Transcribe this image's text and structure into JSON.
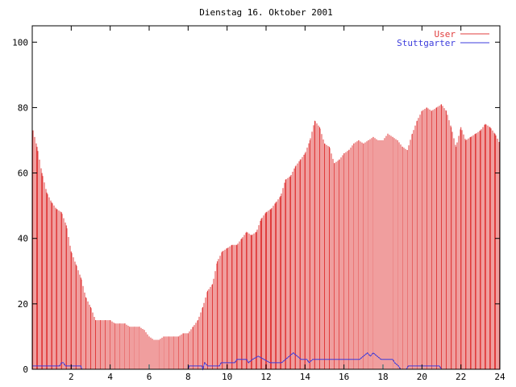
{
  "chart_data": {
    "type": "bar",
    "title": "Dienstag 16. Oktober 2001",
    "xlabel": "",
    "ylabel": "",
    "xlim": [
      0,
      24
    ],
    "ylim": [
      0,
      105
    ],
    "x_ticks": [
      2,
      4,
      6,
      8,
      10,
      12,
      14,
      16,
      18,
      20,
      22,
      24
    ],
    "y_ticks": [
      0,
      20,
      40,
      60,
      80,
      100
    ],
    "grid": false,
    "legend_position": "top-right",
    "colors": {
      "User": "#e03c3c",
      "Stuttgarter": "#3c3cdc"
    },
    "series": [
      {
        "name": "User",
        "style": "impulses",
        "points": [
          [
            0.0,
            74
          ],
          [
            0.25,
            68
          ],
          [
            0.5,
            60
          ],
          [
            0.75,
            54
          ],
          [
            1.0,
            51
          ],
          [
            1.25,
            49
          ],
          [
            1.5,
            48
          ],
          [
            1.75,
            44
          ],
          [
            2.0,
            36
          ],
          [
            2.25,
            32
          ],
          [
            2.5,
            28
          ],
          [
            2.75,
            22
          ],
          [
            3.0,
            19
          ],
          [
            3.25,
            15
          ],
          [
            3.5,
            15
          ],
          [
            3.75,
            15
          ],
          [
            4.0,
            15
          ],
          [
            4.25,
            14
          ],
          [
            4.5,
            14
          ],
          [
            4.75,
            14
          ],
          [
            5.0,
            13
          ],
          [
            5.25,
            13
          ],
          [
            5.5,
            13
          ],
          [
            5.75,
            12
          ],
          [
            6.0,
            10
          ],
          [
            6.25,
            9
          ],
          [
            6.5,
            9
          ],
          [
            6.75,
            10
          ],
          [
            7.0,
            10
          ],
          [
            7.25,
            10
          ],
          [
            7.5,
            10
          ],
          [
            7.75,
            11
          ],
          [
            8.0,
            11
          ],
          [
            8.25,
            13
          ],
          [
            8.5,
            15
          ],
          [
            8.75,
            19
          ],
          [
            9.0,
            24
          ],
          [
            9.25,
            26
          ],
          [
            9.5,
            33
          ],
          [
            9.75,
            36
          ],
          [
            10.0,
            37
          ],
          [
            10.25,
            38
          ],
          [
            10.5,
            38
          ],
          [
            10.75,
            40
          ],
          [
            11.0,
            42
          ],
          [
            11.25,
            41
          ],
          [
            11.5,
            42
          ],
          [
            11.75,
            46
          ],
          [
            12.0,
            48
          ],
          [
            12.25,
            49
          ],
          [
            12.5,
            51
          ],
          [
            12.75,
            53
          ],
          [
            13.0,
            58
          ],
          [
            13.25,
            59
          ],
          [
            13.5,
            62
          ],
          [
            13.75,
            64
          ],
          [
            14.0,
            66
          ],
          [
            14.25,
            70
          ],
          [
            14.5,
            76
          ],
          [
            14.75,
            74
          ],
          [
            15.0,
            69
          ],
          [
            15.25,
            68
          ],
          [
            15.5,
            63
          ],
          [
            15.75,
            64
          ],
          [
            16.0,
            66
          ],
          [
            16.25,
            67
          ],
          [
            16.5,
            69
          ],
          [
            16.75,
            70
          ],
          [
            17.0,
            69
          ],
          [
            17.25,
            70
          ],
          [
            17.5,
            71
          ],
          [
            17.75,
            70
          ],
          [
            18.0,
            70
          ],
          [
            18.25,
            72
          ],
          [
            18.5,
            71
          ],
          [
            18.75,
            70
          ],
          [
            19.0,
            68
          ],
          [
            19.25,
            67
          ],
          [
            19.5,
            72
          ],
          [
            19.75,
            76
          ],
          [
            20.0,
            79
          ],
          [
            20.25,
            80
          ],
          [
            20.5,
            79
          ],
          [
            20.75,
            80
          ],
          [
            21.0,
            81
          ],
          [
            21.25,
            79
          ],
          [
            21.5,
            74
          ],
          [
            21.75,
            68
          ],
          [
            22.0,
            74
          ],
          [
            22.25,
            70
          ],
          [
            22.5,
            71
          ],
          [
            22.75,
            72
          ],
          [
            23.0,
            73
          ],
          [
            23.25,
            75
          ],
          [
            23.5,
            74
          ],
          [
            23.75,
            72
          ],
          [
            24.0,
            69
          ]
        ]
      },
      {
        "name": "Stuttgarter",
        "style": "line",
        "points": [
          [
            0.0,
            1
          ],
          [
            1.0,
            1
          ],
          [
            1.4,
            1
          ],
          [
            1.5,
            2
          ],
          [
            1.6,
            2
          ],
          [
            1.7,
            1
          ],
          [
            2.5,
            1
          ],
          [
            2.55,
            0
          ],
          [
            8.0,
            0
          ],
          [
            8.05,
            1
          ],
          [
            8.7,
            1
          ],
          [
            8.75,
            0
          ],
          [
            8.85,
            2
          ],
          [
            9.0,
            1
          ],
          [
            9.6,
            1
          ],
          [
            9.7,
            2
          ],
          [
            10.4,
            2
          ],
          [
            10.5,
            3
          ],
          [
            11.0,
            3
          ],
          [
            11.1,
            2
          ],
          [
            11.3,
            3
          ],
          [
            11.6,
            4
          ],
          [
            11.9,
            3
          ],
          [
            12.2,
            2
          ],
          [
            12.8,
            2
          ],
          [
            13.0,
            3
          ],
          [
            13.2,
            4
          ],
          [
            13.4,
            5
          ],
          [
            13.6,
            4
          ],
          [
            13.8,
            3
          ],
          [
            14.1,
            3
          ],
          [
            14.2,
            2
          ],
          [
            14.4,
            3
          ],
          [
            16.8,
            3
          ],
          [
            17.0,
            4
          ],
          [
            17.2,
            5
          ],
          [
            17.35,
            4
          ],
          [
            17.5,
            5
          ],
          [
            17.7,
            4
          ],
          [
            17.9,
            3
          ],
          [
            18.5,
            3
          ],
          [
            18.6,
            2
          ],
          [
            18.8,
            1
          ],
          [
            18.9,
            0
          ],
          [
            19.2,
            0
          ],
          [
            19.3,
            1
          ],
          [
            20.9,
            1
          ],
          [
            21.0,
            0
          ],
          [
            24.0,
            0
          ]
        ]
      }
    ]
  }
}
